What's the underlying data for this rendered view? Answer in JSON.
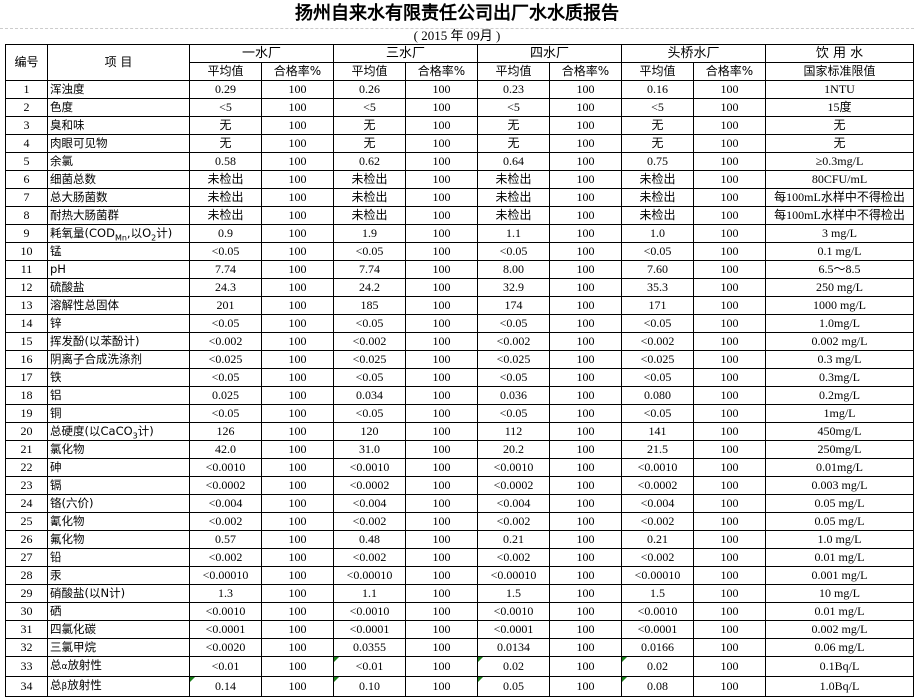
{
  "title": "扬州自来水有限责任公司出厂水水质报告",
  "subtitle": "(    2015  年  09月     )",
  "header": {
    "no": "编号",
    "item": "项    目",
    "plants": [
      "一水厂",
      "三水厂",
      "四水厂",
      "头桥水厂"
    ],
    "avg": "平均值",
    "rate": "合格率%",
    "std_top": "饮 用 水",
    "std_bottom": "国家标准限值"
  },
  "rows": [
    {
      "no": "1",
      "item": [
        {
          "t": "浑浊度"
        }
      ],
      "v": [
        "0.29",
        "100",
        "0.26",
        "100",
        "0.23",
        "100",
        "0.16",
        "100"
      ],
      "std": "1NTU"
    },
    {
      "no": "2",
      "item": [
        {
          "t": "色度"
        }
      ],
      "v": [
        "<5",
        "100",
        "<5",
        "100",
        "<5",
        "100",
        "<5",
        "100"
      ],
      "std": "15度"
    },
    {
      "no": "3",
      "item": [
        {
          "t": "臭和味"
        }
      ],
      "v": [
        "无",
        "100",
        "无",
        "100",
        "无",
        "100",
        "无",
        "100"
      ],
      "std": "无"
    },
    {
      "no": "4",
      "item": [
        {
          "t": "肉眼可见物"
        }
      ],
      "v": [
        "无",
        "100",
        "无",
        "100",
        "无",
        "100",
        "无",
        "100"
      ],
      "std": "无"
    },
    {
      "no": "5",
      "item": [
        {
          "t": "余氯"
        }
      ],
      "v": [
        "0.58",
        "100",
        "0.62",
        "100",
        "0.64",
        "100",
        "0.75",
        "100"
      ],
      "std": "≥0.3mg/L"
    },
    {
      "no": "6",
      "item": [
        {
          "t": "细菌总数"
        }
      ],
      "v": [
        "未检出",
        "100",
        "未检出",
        "100",
        "未检出",
        "100",
        "未检出",
        "100"
      ],
      "std": "80CFU/mL"
    },
    {
      "no": "7",
      "item": [
        {
          "t": "总大肠菌数"
        }
      ],
      "v": [
        "未检出",
        "100",
        "未检出",
        "100",
        "未检出",
        "100",
        "未检出",
        "100"
      ],
      "std": "每100mL水样中不得检出"
    },
    {
      "no": "8",
      "item": [
        {
          "t": "耐热大肠菌群"
        }
      ],
      "v": [
        "未检出",
        "100",
        "未检出",
        "100",
        "未检出",
        "100",
        "未检出",
        "100"
      ],
      "std": "每100mL水样中不得检出"
    },
    {
      "no": "9",
      "item": [
        {
          "t": "耗氧量(COD"
        },
        {
          "sub": "Mn"
        },
        {
          "t": ",以O"
        },
        {
          "sub": "2"
        },
        {
          "t": "计)"
        }
      ],
      "v": [
        "0.9",
        "100",
        "1.9",
        "100",
        "1.1",
        "100",
        "1.0",
        "100"
      ],
      "std": "3 mg/L"
    },
    {
      "no": "10",
      "item": [
        {
          "t": "锰"
        }
      ],
      "v": [
        "<0.05",
        "100",
        "<0.05",
        "100",
        "<0.05",
        "100",
        "<0.05",
        "100"
      ],
      "std": "0.1 mg/L"
    },
    {
      "no": "11",
      "item": [
        {
          "t": "pH"
        }
      ],
      "v": [
        "7.74",
        "100",
        "7.74",
        "100",
        "8.00",
        "100",
        "7.60",
        "100"
      ],
      "std": "6.5～8.5"
    },
    {
      "no": "12",
      "item": [
        {
          "t": "硫酸盐"
        }
      ],
      "v": [
        "24.3",
        "100",
        "24.2",
        "100",
        "32.9",
        "100",
        "35.3",
        "100"
      ],
      "std": "250 mg/L"
    },
    {
      "no": "13",
      "item": [
        {
          "t": "溶解性总固体"
        }
      ],
      "v": [
        "201",
        "100",
        "185",
        "100",
        "174",
        "100",
        "171",
        "100"
      ],
      "std": "1000 mg/L"
    },
    {
      "no": "14",
      "item": [
        {
          "t": "锌"
        }
      ],
      "v": [
        "<0.05",
        "100",
        "<0.05",
        "100",
        "<0.05",
        "100",
        "<0.05",
        "100"
      ],
      "std": "1.0mg/L"
    },
    {
      "no": "15",
      "item": [
        {
          "t": "挥发酚(以苯酚计)"
        }
      ],
      "v": [
        "<0.002",
        "100",
        "<0.002",
        "100",
        "<0.002",
        "100",
        "<0.002",
        "100"
      ],
      "std": "0.002 mg/L"
    },
    {
      "no": "16",
      "item": [
        {
          "t": "阴离子合成洗涤剂"
        }
      ],
      "v": [
        "<0.025",
        "100",
        "<0.025",
        "100",
        "<0.025",
        "100",
        "<0.025",
        "100"
      ],
      "std": "0.3 mg/L"
    },
    {
      "no": "17",
      "item": [
        {
          "t": "铁"
        }
      ],
      "v": [
        "<0.05",
        "100",
        "<0.05",
        "100",
        "<0.05",
        "100",
        "<0.05",
        "100"
      ],
      "std": "0.3mg/L"
    },
    {
      "no": "18",
      "item": [
        {
          "t": "铝"
        }
      ],
      "v": [
        "0.025",
        "100",
        "0.034",
        "100",
        "0.036",
        "100",
        "0.080",
        "100"
      ],
      "std": "0.2mg/L"
    },
    {
      "no": "19",
      "item": [
        {
          "t": "铜"
        }
      ],
      "v": [
        "<0.05",
        "100",
        "<0.05",
        "100",
        "<0.05",
        "100",
        "<0.05",
        "100"
      ],
      "std": "1mg/L"
    },
    {
      "no": "20",
      "item": [
        {
          "t": "总硬度(以CaCO"
        },
        {
          "sub": "3"
        },
        {
          "t": "计)"
        }
      ],
      "v": [
        "126",
        "100",
        "120",
        "100",
        "112",
        "100",
        "141",
        "100"
      ],
      "std": "450mg/L"
    },
    {
      "no": "21",
      "item": [
        {
          "t": "氯化物"
        }
      ],
      "v": [
        "42.0",
        "100",
        "31.0",
        "100",
        "20.2",
        "100",
        "21.5",
        "100"
      ],
      "std": "250mg/L"
    },
    {
      "no": "22",
      "item": [
        {
          "t": "砷"
        }
      ],
      "v": [
        "<0.0010",
        "100",
        "<0.0010",
        "100",
        "<0.0010",
        "100",
        "<0.0010",
        "100"
      ],
      "std": "0.01mg/L"
    },
    {
      "no": "23",
      "item": [
        {
          "t": "镉"
        }
      ],
      "v": [
        "<0.0002",
        "100",
        "<0.0002",
        "100",
        "<0.0002",
        "100",
        "<0.0002",
        "100"
      ],
      "std": "0.003 mg/L"
    },
    {
      "no": "24",
      "item": [
        {
          "t": "铬(六价)"
        }
      ],
      "v": [
        "<0.004",
        "100",
        "<0.004",
        "100",
        "<0.004",
        "100",
        "<0.004",
        "100"
      ],
      "std": "0.05 mg/L"
    },
    {
      "no": "25",
      "item": [
        {
          "t": "氰化物"
        }
      ],
      "v": [
        "<0.002",
        "100",
        "<0.002",
        "100",
        "<0.002",
        "100",
        "<0.002",
        "100"
      ],
      "std": "0.05 mg/L"
    },
    {
      "no": "26",
      "item": [
        {
          "t": "氟化物"
        }
      ],
      "v": [
        "0.57",
        "100",
        "0.48",
        "100",
        "0.21",
        "100",
        "0.21",
        "100"
      ],
      "std": "1.0 mg/L"
    },
    {
      "no": "27",
      "item": [
        {
          "t": "铅"
        }
      ],
      "v": [
        "<0.002",
        "100",
        "<0.002",
        "100",
        "<0.002",
        "100",
        "<0.002",
        "100"
      ],
      "std": "0.01 mg/L"
    },
    {
      "no": "28",
      "item": [
        {
          "t": "汞"
        }
      ],
      "v": [
        "<0.00010",
        "100",
        "<0.00010",
        "100",
        "<0.00010",
        "100",
        "<0.00010",
        "100"
      ],
      "std": "0.001 mg/L"
    },
    {
      "no": "29",
      "item": [
        {
          "t": "硝酸盐(以N计)"
        }
      ],
      "v": [
        "1.3",
        "100",
        "1.1",
        "100",
        "1.5",
        "100",
        "1.5",
        "100"
      ],
      "std": "10 mg/L"
    },
    {
      "no": "30",
      "item": [
        {
          "t": "硒"
        }
      ],
      "v": [
        "<0.0010",
        "100",
        "<0.0010",
        "100",
        "<0.0010",
        "100",
        "<0.0010",
        "100"
      ],
      "std": "0.01 mg/L"
    },
    {
      "no": "31",
      "item": [
        {
          "t": "四氯化碳"
        }
      ],
      "v": [
        "<0.0001",
        "100",
        "<0.0001",
        "100",
        "<0.0001",
        "100",
        "<0.0001",
        "100"
      ],
      "std": "0.002 mg/L"
    },
    {
      "no": "32",
      "item": [
        {
          "t": "三氯甲烷"
        }
      ],
      "v": [
        "<0.0020",
        "100",
        "0.0355",
        "100",
        "0.0134",
        "100",
        "0.0166",
        "100"
      ],
      "std": "0.06 mg/L"
    },
    {
      "no": "33",
      "item": [
        {
          "t": "总"
        },
        {
          "sup": "α"
        },
        {
          "t": "放射性"
        }
      ],
      "v": [
        "<0.01",
        "100",
        "<0.01",
        "100",
        "0.02",
        "100",
        "0.02",
        "100"
      ],
      "std": "0.1Bq/L"
    },
    {
      "no": "34",
      "item": [
        {
          "t": "总"
        },
        {
          "sup": "β"
        },
        {
          "t": "放射性"
        }
      ],
      "v": [
        "0.14",
        "100",
        "0.10",
        "100",
        "0.05",
        "100",
        "0.08",
        "100"
      ],
      "std": "1.0Bq/L"
    }
  ]
}
